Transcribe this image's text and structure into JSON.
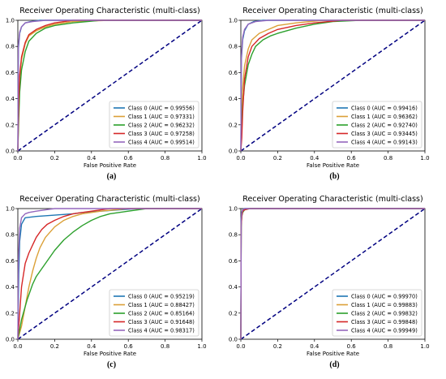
{
  "chart_data": [
    {
      "type": "line",
      "panel": "a",
      "caption": "(a)",
      "title": "Receiver Operating Characteristic (multi-class)",
      "xlabel": "False Positive Rate",
      "ylabel": "",
      "xlim": [
        0,
        1
      ],
      "ylim": [
        0,
        1
      ],
      "xticks": [
        "0.0",
        "0.2",
        "0.4",
        "0.6",
        "0.8",
        "1.0"
      ],
      "yticks": [
        "0.0",
        "0.2",
        "0.4",
        "0.6",
        "0.8",
        "1.0"
      ],
      "legend_position": "lower-right",
      "colors": [
        "#1f77b4",
        "#dba037",
        "#2ca02c",
        "#d62728",
        "#9467bd"
      ],
      "series": [
        {
          "name": "Class 0 (AUC = 0.99556)",
          "x": [
            0,
            0.003,
            0.01,
            0.02,
            0.04,
            0.07,
            0.12,
            0.2,
            1
          ],
          "y": [
            0,
            0.78,
            0.9,
            0.95,
            0.98,
            0.99,
            1,
            1,
            1
          ]
        },
        {
          "name": "Class 1 (AUC = 0.97331)",
          "x": [
            0,
            0.005,
            0.01,
            0.02,
            0.04,
            0.06,
            0.1,
            0.15,
            0.2,
            0.3,
            0.5,
            1
          ],
          "y": [
            0,
            0.35,
            0.55,
            0.7,
            0.82,
            0.88,
            0.92,
            0.95,
            0.97,
            0.99,
            1,
            1
          ]
        },
        {
          "name": "Class 2 (AUC = 0.96232)",
          "x": [
            0,
            0.005,
            0.01,
            0.02,
            0.04,
            0.06,
            0.1,
            0.15,
            0.2,
            0.3,
            0.45,
            1
          ],
          "y": [
            0,
            0.25,
            0.45,
            0.62,
            0.76,
            0.84,
            0.9,
            0.94,
            0.96,
            0.98,
            1,
            1
          ]
        },
        {
          "name": "Class 3 (AUC = 0.97258)",
          "x": [
            0,
            0.005,
            0.01,
            0.02,
            0.04,
            0.06,
            0.1,
            0.15,
            0.2,
            0.3,
            1
          ],
          "y": [
            0,
            0.4,
            0.58,
            0.72,
            0.83,
            0.89,
            0.93,
            0.96,
            0.98,
            1,
            1
          ]
        },
        {
          "name": "Class 4 (AUC = 0.99514)",
          "x": [
            0,
            0.003,
            0.01,
            0.02,
            0.04,
            0.08,
            0.15,
            1
          ],
          "y": [
            0,
            0.8,
            0.91,
            0.95,
            0.98,
            0.99,
            1,
            1
          ]
        }
      ]
    },
    {
      "type": "line",
      "panel": "b",
      "caption": "(b)",
      "title": "Receiver Operating Characteristic (multi-class)",
      "xlabel": "False Positive Rate",
      "ylabel": "",
      "xlim": [
        0,
        1
      ],
      "ylim": [
        0,
        1
      ],
      "xticks": [
        "0.0",
        "0.2",
        "0.4",
        "0.6",
        "0.8",
        "1.0"
      ],
      "yticks": [
        "0.0",
        "0.2",
        "0.4",
        "0.6",
        "0.8",
        "1.0"
      ],
      "legend_position": "lower-right",
      "colors": [
        "#1f77b4",
        "#dba037",
        "#2ca02c",
        "#d62728",
        "#9467bd"
      ],
      "series": [
        {
          "name": "Class 0 (AUC = 0.99416)",
          "x": [
            0,
            0.003,
            0.01,
            0.02,
            0.04,
            0.07,
            0.12,
            0.2,
            1
          ],
          "y": [
            0,
            0.7,
            0.85,
            0.92,
            0.97,
            0.99,
            1,
            1,
            1
          ]
        },
        {
          "name": "Class 1 (AUC = 0.96362)",
          "x": [
            0,
            0.005,
            0.01,
            0.02,
            0.04,
            0.06,
            0.1,
            0.15,
            0.2,
            0.3,
            0.45,
            1
          ],
          "y": [
            0,
            0.3,
            0.48,
            0.65,
            0.78,
            0.85,
            0.9,
            0.93,
            0.96,
            0.98,
            1,
            1
          ]
        },
        {
          "name": "Class 2 (AUC = 0.92740)",
          "x": [
            0,
            0.005,
            0.01,
            0.02,
            0.04,
            0.06,
            0.08,
            0.12,
            0.16,
            0.2,
            0.3,
            0.4,
            0.5,
            0.65,
            1
          ],
          "y": [
            0,
            0.2,
            0.35,
            0.5,
            0.66,
            0.74,
            0.8,
            0.85,
            0.88,
            0.9,
            0.94,
            0.97,
            0.99,
            1,
            1
          ]
        },
        {
          "name": "Class 3 (AUC = 0.93445)",
          "x": [
            0,
            0.005,
            0.01,
            0.02,
            0.04,
            0.06,
            0.1,
            0.15,
            0.2,
            0.3,
            0.4,
            0.55,
            1
          ],
          "y": [
            0,
            0.1,
            0.3,
            0.55,
            0.72,
            0.8,
            0.86,
            0.9,
            0.93,
            0.96,
            0.98,
            1,
            1
          ]
        },
        {
          "name": "Class 4 (AUC = 0.99143)",
          "x": [
            0,
            0.003,
            0.01,
            0.02,
            0.04,
            0.08,
            0.15,
            0.25,
            1
          ],
          "y": [
            0,
            0.72,
            0.87,
            0.93,
            0.97,
            0.99,
            1,
            1,
            1
          ]
        }
      ]
    },
    {
      "type": "line",
      "panel": "c",
      "caption": "(c)",
      "title": "Receiver Operating Characteristic (multi-class)",
      "xlabel": "False Positive Rate",
      "ylabel": "",
      "xlim": [
        0,
        1
      ],
      "ylim": [
        0,
        1
      ],
      "xticks": [
        "0.0",
        "0.2",
        "0.4",
        "0.6",
        "0.8",
        "1.0"
      ],
      "yticks": [
        "0.0",
        "0.2",
        "0.4",
        "0.6",
        "0.8",
        "1.0"
      ],
      "legend_position": "lower-right",
      "colors": [
        "#1f77b4",
        "#dba037",
        "#2ca02c",
        "#d62728",
        "#9467bd"
      ],
      "series": [
        {
          "name": "Class 0 (AUC = 0.95219)",
          "x": [
            0,
            0.005,
            0.01,
            0.02,
            0.04,
            0.1,
            0.2,
            0.3,
            0.35,
            0.45,
            0.55,
            0.65,
            1
          ],
          "y": [
            0,
            0.5,
            0.75,
            0.88,
            0.93,
            0.94,
            0.95,
            0.96,
            0.97,
            0.98,
            0.99,
            1,
            1
          ]
        },
        {
          "name": "Class 1 (AUC = 0.88427)",
          "x": [
            0,
            0.02,
            0.04,
            0.06,
            0.08,
            0.1,
            0.12,
            0.15,
            0.2,
            0.25,
            0.3,
            0.35,
            0.45,
            0.6,
            1
          ],
          "y": [
            0,
            0.1,
            0.25,
            0.4,
            0.52,
            0.62,
            0.7,
            0.78,
            0.86,
            0.91,
            0.94,
            0.96,
            0.98,
            1,
            1
          ]
        },
        {
          "name": "Class 2 (AUC = 0.85164)",
          "x": [
            0,
            0.02,
            0.05,
            0.08,
            0.1,
            0.15,
            0.2,
            0.25,
            0.3,
            0.35,
            0.4,
            0.45,
            0.5,
            0.6,
            0.7,
            1
          ],
          "y": [
            0,
            0.15,
            0.3,
            0.42,
            0.48,
            0.58,
            0.68,
            0.76,
            0.82,
            0.87,
            0.91,
            0.94,
            0.96,
            0.98,
            1,
            1
          ]
        },
        {
          "name": "Class 3 (AUC = 0.91648)",
          "x": [
            0,
            0.01,
            0.02,
            0.04,
            0.06,
            0.08,
            0.1,
            0.13,
            0.16,
            0.2,
            0.25,
            0.3,
            0.4,
            0.5,
            1
          ],
          "y": [
            0,
            0.2,
            0.4,
            0.58,
            0.66,
            0.72,
            0.78,
            0.84,
            0.88,
            0.91,
            0.94,
            0.96,
            0.98,
            1,
            1
          ]
        },
        {
          "name": "Class 4 (AUC = 0.98317)",
          "x": [
            0,
            0.003,
            0.01,
            0.02,
            0.04,
            0.06,
            0.1,
            0.15,
            0.2,
            0.3,
            1
          ],
          "y": [
            0,
            0.6,
            0.85,
            0.93,
            0.96,
            0.97,
            0.98,
            0.99,
            1,
            1,
            1
          ]
        }
      ]
    },
    {
      "type": "line",
      "panel": "d",
      "caption": "(d)",
      "title": "Receiver Operating Characteristic (multi-class)",
      "xlabel": "False Positive Rate",
      "ylabel": "",
      "xlim": [
        0,
        1
      ],
      "ylim": [
        0,
        1
      ],
      "xticks": [
        "0.0",
        "0.2",
        "0.4",
        "0.6",
        "0.8",
        "1.0"
      ],
      "yticks": [
        "0.0",
        "0.2",
        "0.4",
        "0.6",
        "0.8",
        "1.0"
      ],
      "legend_position": "lower-right",
      "colors": [
        "#1f77b4",
        "#dba037",
        "#2ca02c",
        "#d62728",
        "#9467bd"
      ],
      "series": [
        {
          "name": "Class 0 (AUC = 0.99970)",
          "x": [
            0,
            0.002,
            0.005,
            0.01,
            0.02,
            0.04,
            1
          ],
          "y": [
            0,
            0.93,
            0.97,
            0.99,
            1,
            1,
            1
          ]
        },
        {
          "name": "Class 1 (AUC = 0.99883)",
          "x": [
            0,
            0.002,
            0.005,
            0.01,
            0.02,
            0.04,
            1
          ],
          "y": [
            0,
            0.88,
            0.95,
            0.98,
            0.99,
            1,
            1
          ]
        },
        {
          "name": "Class 2 (AUC = 0.99832)",
          "x": [
            0,
            0.002,
            0.005,
            0.01,
            0.02,
            0.05,
            1
          ],
          "y": [
            0,
            0.86,
            0.94,
            0.97,
            0.99,
            1,
            1
          ]
        },
        {
          "name": "Class 3 (AUC = 0.99848)",
          "x": [
            0,
            0.002,
            0.005,
            0.01,
            0.02,
            0.05,
            1
          ],
          "y": [
            0,
            0.87,
            0.94,
            0.98,
            0.99,
            1,
            1
          ]
        },
        {
          "name": "Class 4 (AUC = 0.99949)",
          "x": [
            0,
            0.002,
            0.005,
            0.01,
            0.02,
            0.04,
            1
          ],
          "y": [
            0,
            0.92,
            0.97,
            0.99,
            1,
            1,
            1
          ]
        }
      ]
    }
  ]
}
